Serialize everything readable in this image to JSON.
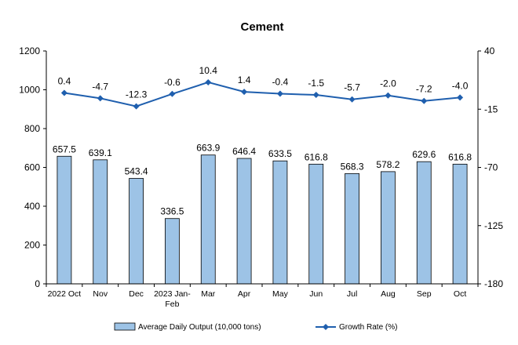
{
  "chart_data": {
    "type": "bar+line",
    "title": "Cement",
    "categories": [
      "2022 Oct",
      "Nov",
      "Dec",
      "2023 Jan-Feb",
      "Mar",
      "Apr",
      "May",
      "Jun",
      "Jul",
      "Aug",
      "Sep",
      "Oct"
    ],
    "series": [
      {
        "name": "Average Daily Output (10,000 tons)",
        "type": "bar",
        "axis": "left",
        "color": "#9DC3E6",
        "values": [
          657.5,
          639.1,
          543.4,
          336.5,
          663.9,
          646.4,
          633.5,
          616.8,
          568.3,
          578.2,
          629.6,
          616.8
        ],
        "labels": [
          "657.5",
          "639.1",
          "543.4",
          "336.5",
          "663.9",
          "646.4",
          "633.5",
          "616.8",
          "568.3",
          "578.2",
          "629.6",
          "616.8"
        ]
      },
      {
        "name": "Growth Rate (%)",
        "type": "line",
        "axis": "right",
        "color": "#1F5FAE",
        "values": [
          0.4,
          -4.7,
          -12.3,
          -0.6,
          10.4,
          1.4,
          -0.4,
          -1.5,
          -5.7,
          -2.0,
          -7.2,
          -4.0
        ],
        "labels": [
          "0.4",
          "-4.7",
          "-12.3",
          "-0.6",
          "10.4",
          "1.4",
          "-0.4",
          "-1.5",
          "-5.7",
          "-2.0",
          "-7.2",
          "-4.0"
        ]
      }
    ],
    "y_left": {
      "min": 0,
      "max": 1200,
      "ticks": [
        "0",
        "200",
        "400",
        "600",
        "800",
        "1000",
        "1200"
      ]
    },
    "y_right": {
      "min": -180,
      "max": 40,
      "ticks": [
        "-180",
        "-125",
        "-70",
        "-15",
        "40"
      ]
    },
    "grid": false,
    "legend_position": "bottom"
  }
}
